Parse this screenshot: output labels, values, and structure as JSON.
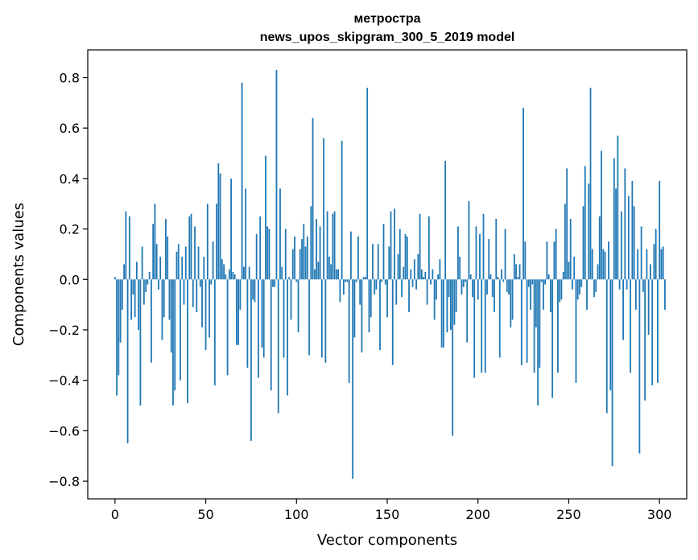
{
  "chart_data": {
    "type": "bar",
    "title": "метростра",
    "subtitle": "news_upos_skipgram_300_5_2019 model",
    "xlabel": "Vector components",
    "ylabel": "Components values",
    "xlim": [
      -15,
      315
    ],
    "ylim": [
      -0.87,
      0.91
    ],
    "xticks": [
      0,
      50,
      100,
      150,
      200,
      250,
      300
    ],
    "yticks": [
      -0.8,
      -0.6,
      -0.4,
      -0.2,
      0.0,
      0.2,
      0.4,
      0.6,
      0.8
    ],
    "ytick_labels": [
      "−0.8",
      "−0.6",
      "−0.4",
      "−0.2",
      "0.0",
      "0.2",
      "0.4",
      "0.6",
      "0.8"
    ],
    "bar_color": "#1f77b4",
    "grid": false,
    "legend": "none",
    "values": [
      0.01,
      -0.46,
      -0.38,
      -0.25,
      -0.12,
      0.06,
      0.27,
      -0.65,
      0.25,
      -0.16,
      -0.06,
      -0.15,
      0.07,
      -0.2,
      -0.5,
      0.13,
      -0.1,
      -0.05,
      -0.02,
      0.03,
      -0.33,
      0.22,
      0.3,
      0.14,
      -0.04,
      0.09,
      -0.24,
      -0.15,
      0.24,
      0.17,
      -0.16,
      -0.29,
      -0.5,
      -0.44,
      0.11,
      0.14,
      -0.4,
      0.09,
      -0.1,
      0.13,
      -0.49,
      0.25,
      0.26,
      -0.11,
      0.21,
      -0.13,
      0.13,
      -0.03,
      -0.19,
      0.09,
      -0.28,
      0.3,
      -0.23,
      -0.02,
      0.15,
      -0.42,
      0.3,
      0.46,
      0.42,
      0.08,
      0.06,
      0.02,
      -0.38,
      0.04,
      0.4,
      0.03,
      0.02,
      -0.26,
      -0.26,
      -0.12,
      0.78,
      0.05,
      0.36,
      -0.35,
      0.05,
      -0.64,
      -0.08,
      -0.09,
      0.18,
      -0.39,
      0.25,
      -0.27,
      -0.31,
      0.49,
      0.21,
      0.2,
      -0.44,
      -0.03,
      -0.03,
      0.83,
      -0.53,
      0.36,
      0.05,
      -0.31,
      0.2,
      -0.46,
      0.01,
      -0.16,
      0.12,
      0.17,
      -0.01,
      -0.21,
      0.12,
      0.16,
      0.22,
      0.13,
      0.17,
      -0.3,
      0.29,
      0.64,
      0.04,
      0.24,
      0.07,
      0.21,
      -0.31,
      0.56,
      -0.33,
      0.27,
      0.09,
      0.06,
      0.26,
      0.27,
      0.04,
      0.04,
      -0.09,
      0.55,
      -0.06,
      -0.01,
      -0.01,
      -0.41,
      0.19,
      -0.79,
      -0.23,
      -0.01,
      0.17,
      -0.1,
      -0.29,
      0.01,
      0.01,
      0.76,
      -0.21,
      -0.15,
      0.14,
      -0.06,
      -0.04,
      0.14,
      -0.28,
      -0.01,
      0.22,
      -0.02,
      -0.15,
      0.13,
      0.27,
      -0.34,
      0.28,
      -0.1,
      0.1,
      0.2,
      -0.07,
      0.05,
      0.18,
      0.17,
      -0.13,
      0.04,
      -0.03,
      0.08,
      -0.04,
      0.1,
      0.26,
      0.04,
      0.01,
      0.03,
      -0.1,
      0.25,
      -0.02,
      0.04,
      -0.16,
      -0.08,
      0.02,
      0.08,
      -0.27,
      -0.27,
      0.47,
      -0.21,
      -0.07,
      -0.2,
      -0.62,
      -0.18,
      -0.13,
      0.21,
      0.09,
      -0.06,
      -0.03,
      -0.01,
      -0.25,
      0.31,
      0.02,
      -0.07,
      -0.39,
      0.21,
      -0.08,
      0.18,
      -0.37,
      0.26,
      -0.37,
      -0.06,
      0.16,
      0.02,
      -0.07,
      -0.13,
      0.24,
      0.01,
      -0.31,
      0.04,
      -0.01,
      0.2,
      -0.05,
      -0.06,
      -0.19,
      -0.16,
      0.1,
      0.06,
      0.01,
      0.06,
      -0.34,
      0.68,
      0.15,
      -0.33,
      -0.03,
      -0.12,
      -0.02,
      -0.37,
      -0.19,
      -0.5,
      -0.35,
      -0.01,
      -0.12,
      -0.02,
      0.15,
      0.02,
      -0.13,
      -0.47,
      0.15,
      0.2,
      -0.37,
      -0.09,
      -0.08,
      0.03,
      0.3,
      0.44,
      0.07,
      0.24,
      -0.04,
      0.09,
      -0.41,
      -0.08,
      -0.06,
      -0.03,
      0.29,
      0.45,
      -0.12,
      0.38,
      0.76,
      0.12,
      -0.07,
      -0.05,
      0.06,
      0.25,
      0.51,
      0.12,
      0.11,
      -0.53,
      0.15,
      -0.44,
      -0.74,
      0.48,
      0.36,
      0.57,
      -0.04,
      0.27,
      -0.24,
      0.44,
      -0.04,
      0.33,
      -0.37,
      0.39,
      0.29,
      -0.12,
      0.12,
      -0.69,
      0.21,
      -0.05,
      -0.48,
      0.12,
      -0.22,
      0.06,
      -0.42,
      0.14,
      0.2,
      -0.41,
      0.39,
      0.12,
      0.13,
      -0.12
    ]
  }
}
